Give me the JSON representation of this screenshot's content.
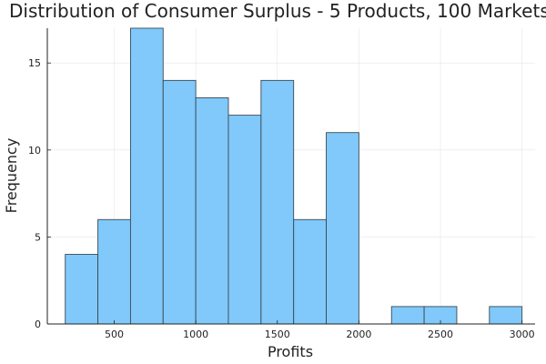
{
  "chart_data": {
    "type": "bar",
    "title": "Distribution of Consumer Surplus - 5 Products, 100 Markets",
    "xlabel": "Profits",
    "ylabel": "Frequency",
    "xlim": [
      90,
      3080
    ],
    "ylim": [
      0,
      17
    ],
    "x_ticks": [
      500,
      1000,
      1500,
      2000,
      2500,
      3000
    ],
    "y_ticks": [
      0,
      5,
      10,
      15
    ],
    "grid": true,
    "legend": "none",
    "bar_color": "#80C9FA",
    "bar_edge_color": "#3A4A55",
    "bins": [
      {
        "start": 200,
        "end": 400,
        "count": 4
      },
      {
        "start": 400,
        "end": 600,
        "count": 6
      },
      {
        "start": 600,
        "end": 800,
        "count": 17
      },
      {
        "start": 800,
        "end": 1000,
        "count": 14
      },
      {
        "start": 1000,
        "end": 1200,
        "count": 13
      },
      {
        "start": 1200,
        "end": 1400,
        "count": 12
      },
      {
        "start": 1400,
        "end": 1600,
        "count": 14
      },
      {
        "start": 1600,
        "end": 1800,
        "count": 6
      },
      {
        "start": 1800,
        "end": 2000,
        "count": 11
      },
      {
        "start": 2200,
        "end": 2400,
        "count": 1
      },
      {
        "start": 2400,
        "end": 2600,
        "count": 1
      },
      {
        "start": 2800,
        "end": 3000,
        "count": 1
      }
    ]
  }
}
